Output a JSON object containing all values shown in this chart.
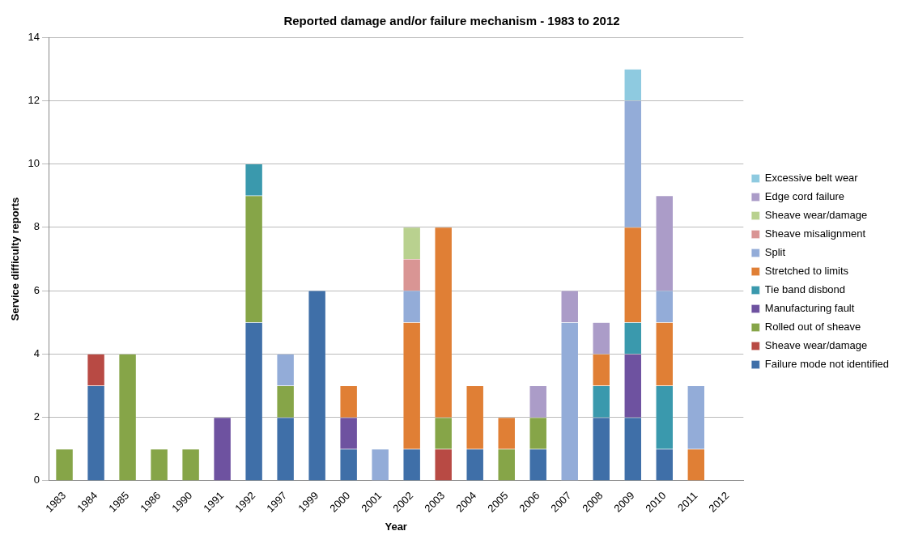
{
  "chart_data": {
    "type": "bar",
    "title": "Reported damage and/or failure mechanism - 1983 to 2012",
    "xlabel": "Year",
    "ylabel": "Service difficulty reports",
    "categories": [
      "1983",
      "1984",
      "1985",
      "1986",
      "1990",
      "1991",
      "1992",
      "1997",
      "1999",
      "2000",
      "2001",
      "2002",
      "2003",
      "2004",
      "2005",
      "2006",
      "2007",
      "2008",
      "2009",
      "2010",
      "2011",
      "2012"
    ],
    "stacked": true,
    "ylim": [
      0,
      14
    ],
    "yticks": [
      0,
      2,
      4,
      6,
      8,
      10,
      12,
      14
    ],
    "grid": "y",
    "legend": "right",
    "series": [
      {
        "name": "Failure mode not identified",
        "color": "#3f6fa8",
        "values": [
          0,
          3,
          0,
          0,
          0,
          0,
          5,
          2,
          6,
          1,
          0,
          1,
          0,
          1,
          0,
          1,
          0,
          2,
          2,
          1,
          0,
          0
        ]
      },
      {
        "name": "Sheave wear/damage",
        "color": "#b84a44",
        "values": [
          0,
          1,
          0,
          0,
          0,
          0,
          0,
          0,
          0,
          0,
          0,
          0,
          1,
          0,
          0,
          0,
          0,
          0,
          0,
          0,
          0,
          0
        ]
      },
      {
        "name": "Rolled out of sheave",
        "color": "#86a548",
        "values": [
          1,
          0,
          4,
          1,
          1,
          0,
          4,
          1,
          0,
          0,
          0,
          0,
          1,
          0,
          1,
          1,
          0,
          0,
          0,
          0,
          0,
          0
        ]
      },
      {
        "name": "Manufacturing fault",
        "color": "#6e52a0",
        "values": [
          0,
          0,
          0,
          0,
          0,
          2,
          0,
          0,
          0,
          1,
          0,
          0,
          0,
          0,
          0,
          0,
          0,
          0,
          2,
          0,
          0,
          0
        ]
      },
      {
        "name": "Tie band disbond",
        "color": "#3a99ad",
        "values": [
          0,
          0,
          0,
          0,
          0,
          0,
          1,
          0,
          0,
          0,
          0,
          0,
          0,
          0,
          0,
          0,
          0,
          1,
          1,
          2,
          0,
          0
        ]
      },
      {
        "name": "Stretched to limits",
        "color": "#e07f35",
        "values": [
          0,
          0,
          0,
          0,
          0,
          0,
          0,
          0,
          0,
          1,
          0,
          4,
          6,
          2,
          1,
          0,
          0,
          1,
          3,
          2,
          1,
          0
        ]
      },
      {
        "name": "Split",
        "color": "#93acd8",
        "values": [
          0,
          0,
          0,
          0,
          0,
          0,
          0,
          1,
          0,
          0,
          1,
          1,
          0,
          0,
          0,
          0,
          5,
          0,
          4,
          1,
          2,
          0
        ]
      },
      {
        "name": "Sheave misalignment",
        "color": "#d99594",
        "values": [
          0,
          0,
          0,
          0,
          0,
          0,
          0,
          0,
          0,
          0,
          0,
          1,
          0,
          0,
          0,
          0,
          0,
          0,
          0,
          0,
          0,
          0
        ]
      },
      {
        "name": "Sheave wear/damage",
        "color": "#b9d18f",
        "values": [
          0,
          0,
          0,
          0,
          0,
          0,
          0,
          0,
          0,
          0,
          0,
          1,
          0,
          0,
          0,
          0,
          0,
          0,
          0,
          0,
          0,
          0
        ]
      },
      {
        "name": "Edge cord failure",
        "color": "#ab9cc8",
        "values": [
          0,
          0,
          0,
          0,
          0,
          0,
          0,
          0,
          0,
          0,
          0,
          0,
          0,
          0,
          0,
          1,
          1,
          1,
          0,
          3,
          0,
          0
        ]
      },
      {
        "name": "Excessive belt wear",
        "color": "#8ecae0",
        "values": [
          0,
          0,
          0,
          0,
          0,
          0,
          0,
          0,
          0,
          0,
          0,
          0,
          0,
          0,
          0,
          0,
          0,
          0,
          1,
          0,
          0,
          0
        ]
      }
    ]
  }
}
